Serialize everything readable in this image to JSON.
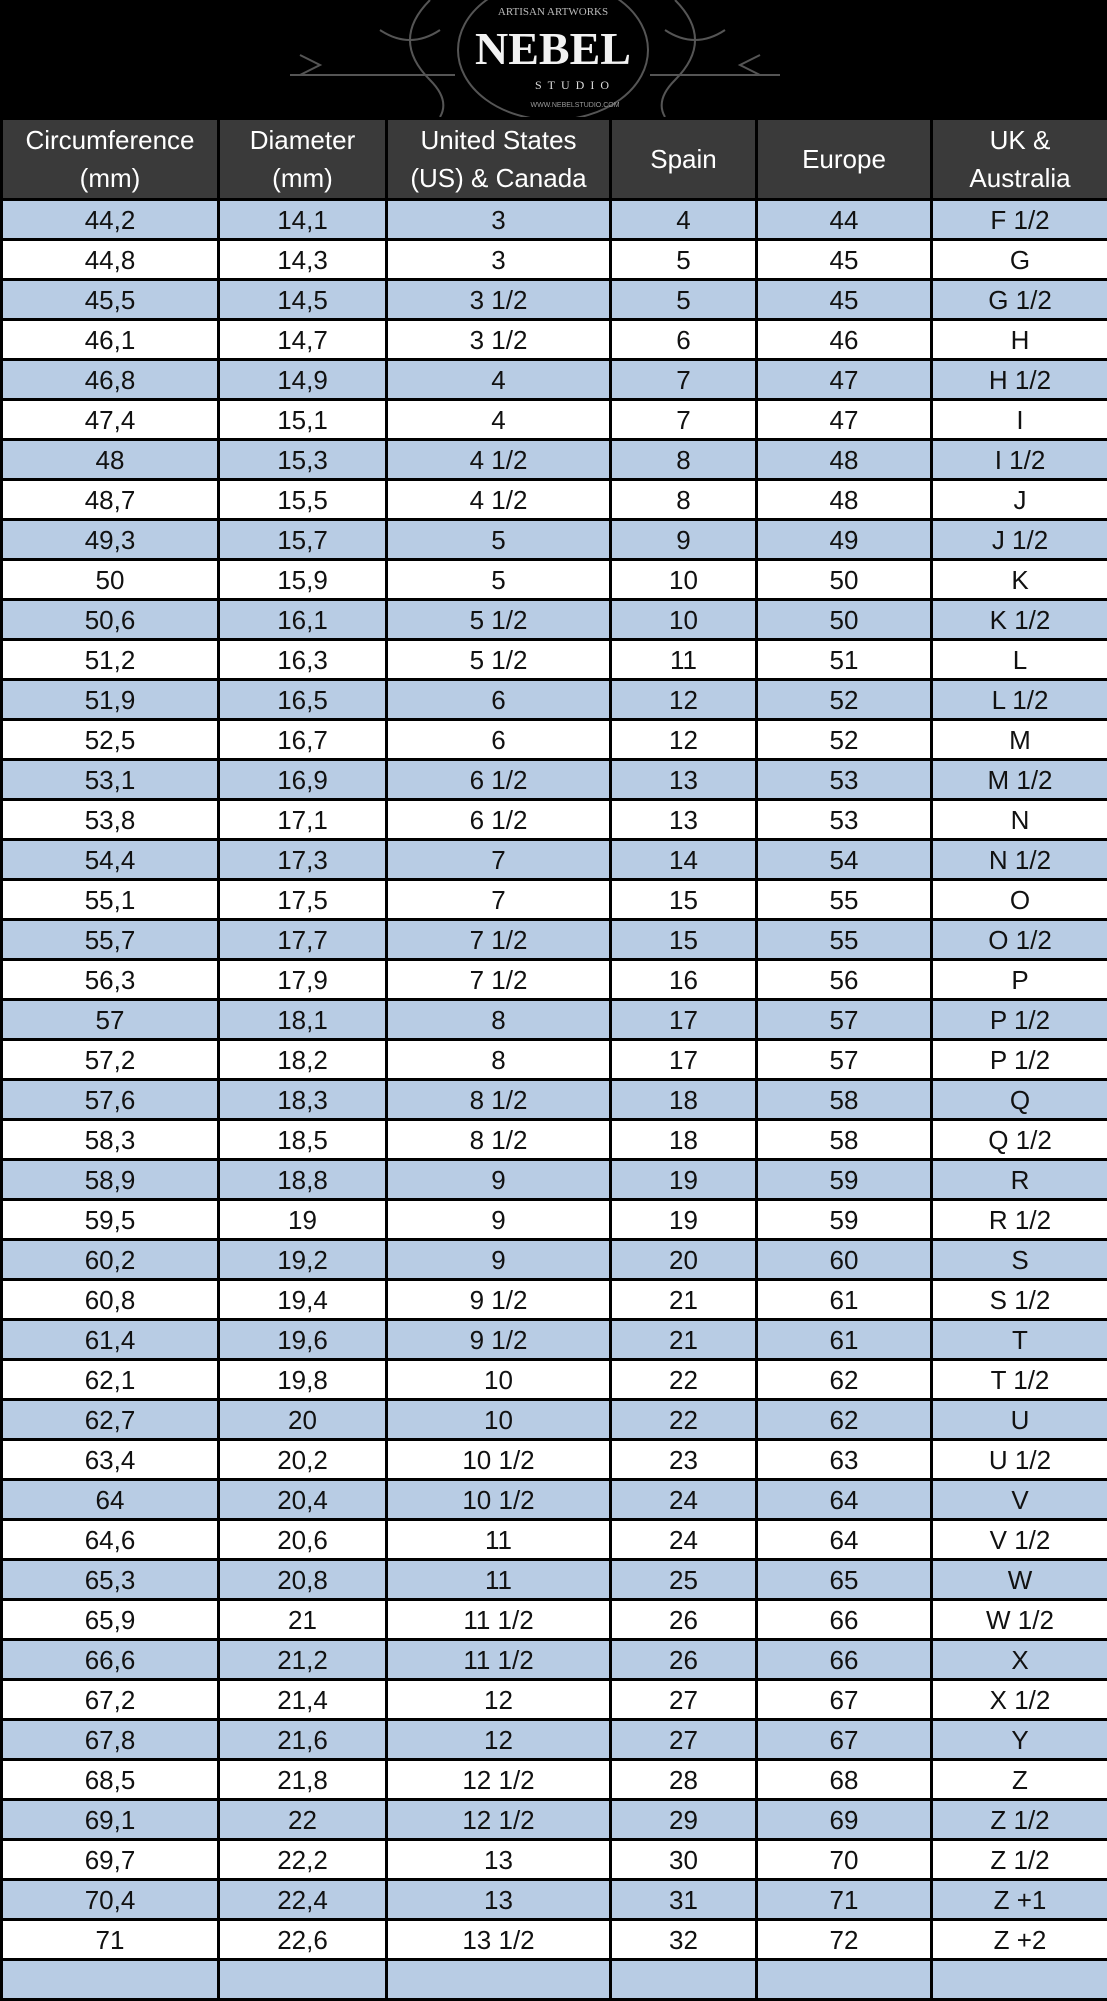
{
  "logo": {
    "tagline": "ARTISAN ARTWORKS",
    "name": "NEBEL",
    "sub": "STUDIO",
    "url": "WWW.NEBELSTUDIO.COM"
  },
  "colors": {
    "header_bg": "#3a3a3a",
    "stripe": "#b8cce4",
    "border": "#000000"
  },
  "headers": [
    [
      "Circumference",
      "(mm)"
    ],
    [
      "Diameter",
      "(mm)"
    ],
    [
      "United States",
      "(US) & Canada"
    ],
    [
      "Spain"
    ],
    [
      "Europe"
    ],
    [
      "UK &",
      "Australia"
    ]
  ],
  "rows": [
    [
      "44,2",
      "14,1",
      "3",
      "4",
      "44",
      "F 1/2"
    ],
    [
      "44,8",
      "14,3",
      "3",
      "5",
      "45",
      "G"
    ],
    [
      "45,5",
      "14,5",
      "3 1/2",
      "5",
      "45",
      "G 1/2"
    ],
    [
      "46,1",
      "14,7",
      "3 1/2",
      "6",
      "46",
      "H"
    ],
    [
      "46,8",
      "14,9",
      "4",
      "7",
      "47",
      "H 1/2"
    ],
    [
      "47,4",
      "15,1",
      "4",
      "7",
      "47",
      "I"
    ],
    [
      "48",
      "15,3",
      "4 1/2",
      "8",
      "48",
      "I 1/2"
    ],
    [
      "48,7",
      "15,5",
      "4 1/2",
      "8",
      "48",
      "J"
    ],
    [
      "49,3",
      "15,7",
      "5",
      "9",
      "49",
      "J 1/2"
    ],
    [
      "50",
      "15,9",
      "5",
      "10",
      "50",
      "K"
    ],
    [
      "50,6",
      "16,1",
      "5 1/2",
      "10",
      "50",
      "K 1/2"
    ],
    [
      "51,2",
      "16,3",
      "5 1/2",
      "11",
      "51",
      "L"
    ],
    [
      "51,9",
      "16,5",
      "6",
      "12",
      "52",
      "L 1/2"
    ],
    [
      "52,5",
      "16,7",
      "6",
      "12",
      "52",
      "M"
    ],
    [
      "53,1",
      "16,9",
      "6 1/2",
      "13",
      "53",
      "M 1/2"
    ],
    [
      "53,8",
      "17,1",
      "6 1/2",
      "13",
      "53",
      "N"
    ],
    [
      "54,4",
      "17,3",
      "7",
      "14",
      "54",
      "N 1/2"
    ],
    [
      "55,1",
      "17,5",
      "7",
      "15",
      "55",
      "O"
    ],
    [
      "55,7",
      "17,7",
      "7 1/2",
      "15",
      "55",
      "O 1/2"
    ],
    [
      "56,3",
      "17,9",
      "7 1/2",
      "16",
      "56",
      "P"
    ],
    [
      "57",
      "18,1",
      "8",
      "17",
      "57",
      "P 1/2"
    ],
    [
      "57,2",
      "18,2",
      "8",
      "17",
      "57",
      "P 1/2"
    ],
    [
      "57,6",
      "18,3",
      "8 1/2",
      "18",
      "58",
      "Q"
    ],
    [
      "58,3",
      "18,5",
      "8 1/2",
      "18",
      "58",
      "Q 1/2"
    ],
    [
      "58,9",
      "18,8",
      "9",
      "19",
      "59",
      "R"
    ],
    [
      "59,5",
      "19",
      "9",
      "19",
      "59",
      "R 1/2"
    ],
    [
      "60,2",
      "19,2",
      "9",
      "20",
      "60",
      "S"
    ],
    [
      "60,8",
      "19,4",
      "9 1/2",
      "21",
      "61",
      "S 1/2"
    ],
    [
      "61,4",
      "19,6",
      "9 1/2",
      "21",
      "61",
      "T"
    ],
    [
      "62,1",
      "19,8",
      "10",
      "22",
      "62",
      "T 1/2"
    ],
    [
      "62,7",
      "20",
      "10",
      "22",
      "62",
      "U"
    ],
    [
      "63,4",
      "20,2",
      "10 1/2",
      "23",
      "63",
      "U 1/2"
    ],
    [
      "64",
      "20,4",
      "10 1/2",
      "24",
      "64",
      "V"
    ],
    [
      "64,6",
      "20,6",
      "11",
      "24",
      "64",
      "V 1/2"
    ],
    [
      "65,3",
      "20,8",
      "11",
      "25",
      "65",
      "W"
    ],
    [
      "65,9",
      "21",
      "11 1/2",
      "26",
      "66",
      "W 1/2"
    ],
    [
      "66,6",
      "21,2",
      "11 1/2",
      "26",
      "66",
      "X"
    ],
    [
      "67,2",
      "21,4",
      "12",
      "27",
      "67",
      "X 1/2"
    ],
    [
      "67,8",
      "21,6",
      "12",
      "27",
      "67",
      "Y"
    ],
    [
      "68,5",
      "21,8",
      "12 1/2",
      "28",
      "68",
      "Z"
    ],
    [
      "69,1",
      "22",
      "12 1/2",
      "29",
      "69",
      "Z 1/2"
    ],
    [
      "69,7",
      "22,2",
      "13",
      "30",
      "70",
      "Z 1/2"
    ],
    [
      "70,4",
      "22,4",
      "13",
      "31",
      "71",
      "Z +1"
    ],
    [
      "71",
      "22,6",
      "13 1/2",
      "32",
      "72",
      "Z +2"
    ],
    [
      "",
      "",
      "",
      "",
      "",
      ""
    ]
  ]
}
